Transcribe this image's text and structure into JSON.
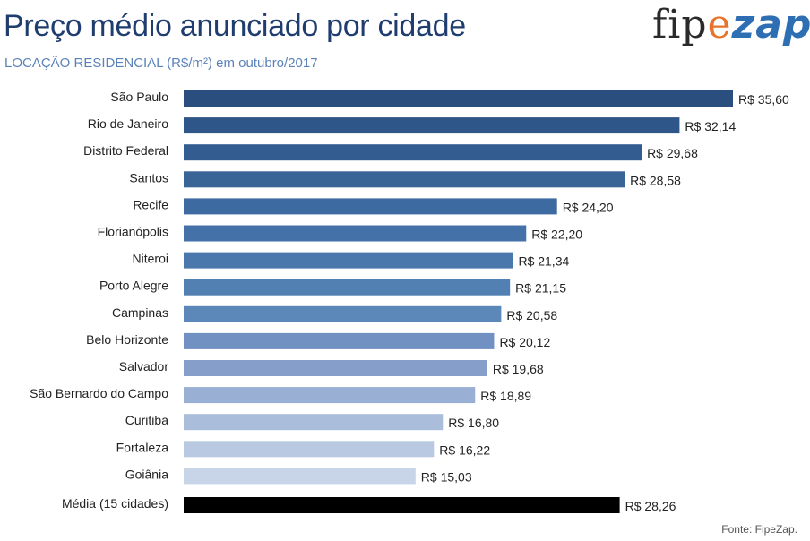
{
  "header": {
    "title": "Preço médio anunciado por cidade",
    "subtitle": "LOCAÇÃO RESIDENCIAL (R$/m²) em outubro/2017",
    "logo": {
      "part1": "fip",
      "part2": "e",
      "part3": "zap"
    }
  },
  "footer": {
    "source": "Fonte: FipeZap."
  },
  "chart_data": {
    "type": "bar",
    "orientation": "horizontal",
    "categories": [
      "São Paulo",
      "Rio de Janeiro",
      "Distrito Federal",
      "Santos",
      "Recife",
      "Florianópolis",
      "Niteroi",
      "Porto Alegre",
      "Campinas",
      "Belo Horizonte",
      "Salvador",
      "São Bernardo do Campo",
      "Curitiba",
      "Fortaleza",
      "Goiânia",
      "Média (15 cidades)"
    ],
    "values": [
      35.6,
      32.14,
      29.68,
      28.58,
      24.2,
      22.2,
      21.34,
      21.15,
      20.58,
      20.12,
      19.68,
      18.89,
      16.8,
      16.22,
      15.03,
      28.26
    ],
    "value_labels": [
      "R$ 35,60",
      "R$ 32,14",
      "R$ 29,68",
      "R$ 28,58",
      "R$ 24,20",
      "R$ 22,20",
      "R$ 21,34",
      "R$ 21,15",
      "R$ 20,58",
      "R$ 20,12",
      "R$ 19,68",
      "R$ 18,89",
      "R$ 16,80",
      "R$ 16,22",
      "R$ 15,03",
      "R$ 28,26"
    ],
    "colors": [
      "#2a4f7e",
      "#2f5688",
      "#335d90",
      "#386496",
      "#3d6aa0",
      "#4371a8",
      "#4a78ad",
      "#5280b3",
      "#5c88b9",
      "#7091c2",
      "#859fca",
      "#99b0d4",
      "#aabedc",
      "#b9c9e2",
      "#c8d4e8",
      "#000000"
    ],
    "xlim": [
      0,
      35.6
    ],
    "grid": false,
    "legend": "none",
    "title": "",
    "xlabel": "",
    "ylabel": ""
  }
}
